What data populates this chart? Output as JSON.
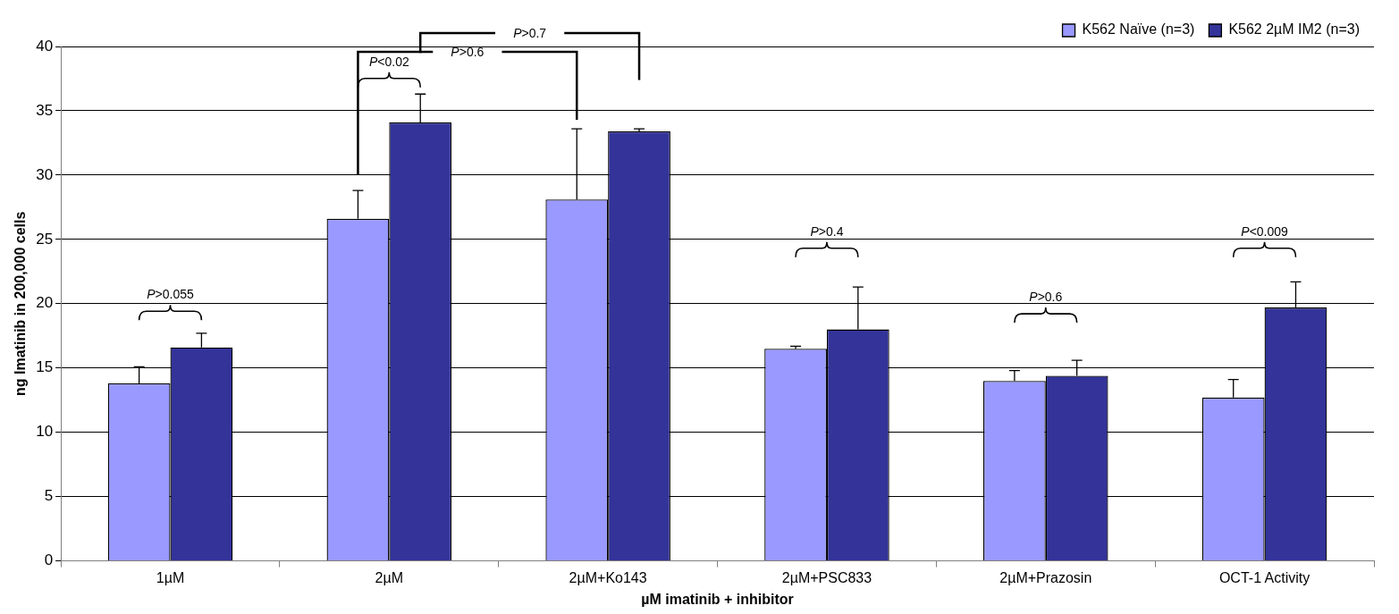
{
  "chart_data": {
    "type": "bar",
    "xlabel": "µM imatinib + inhibitor",
    "ylabel": "ng Imatinib in 200,000 cells",
    "categories": [
      "1µM",
      "2µM",
      "2µM+Ko143",
      "2µM+PSC833",
      "2µM+Prazosin",
      "OCT-1 Activity"
    ],
    "series": [
      {
        "name": "K562 Naïve (n=3)",
        "color": "#9999ff",
        "values": [
          13.8,
          26.6,
          28.1,
          16.5,
          14.0,
          12.7
        ],
        "errors": [
          [
            13.8,
            15.1
          ],
          [
            26.6,
            28.8
          ],
          [
            28.1,
            33.6
          ],
          [
            16.5,
            16.7
          ],
          [
            14.0,
            14.8
          ],
          [
            12.7,
            14.1
          ]
        ]
      },
      {
        "name": "K562 2µM IM2 (n=3)",
        "color": "#333399",
        "values": [
          16.6,
          34.1,
          33.4,
          18.0,
          14.4,
          19.7
        ],
        "errors": [
          [
            16.6,
            17.7
          ],
          [
            34.1,
            36.3
          ],
          [
            33.4,
            33.6
          ],
          [
            18.0,
            21.3
          ],
          [
            14.4,
            15.6
          ],
          [
            19.7,
            21.7
          ]
        ]
      }
    ],
    "ylim": [
      0,
      40
    ],
    "yticks": [
      0,
      5,
      10,
      15,
      20,
      25,
      30,
      35,
      40
    ],
    "grid": "y",
    "legend": "top right",
    "annotations": [
      "P>0.055",
      "P<0.02",
      "P>0.4",
      "P>0.6",
      "P<0.009",
      "P>0.6",
      "P>0.7"
    ]
  }
}
